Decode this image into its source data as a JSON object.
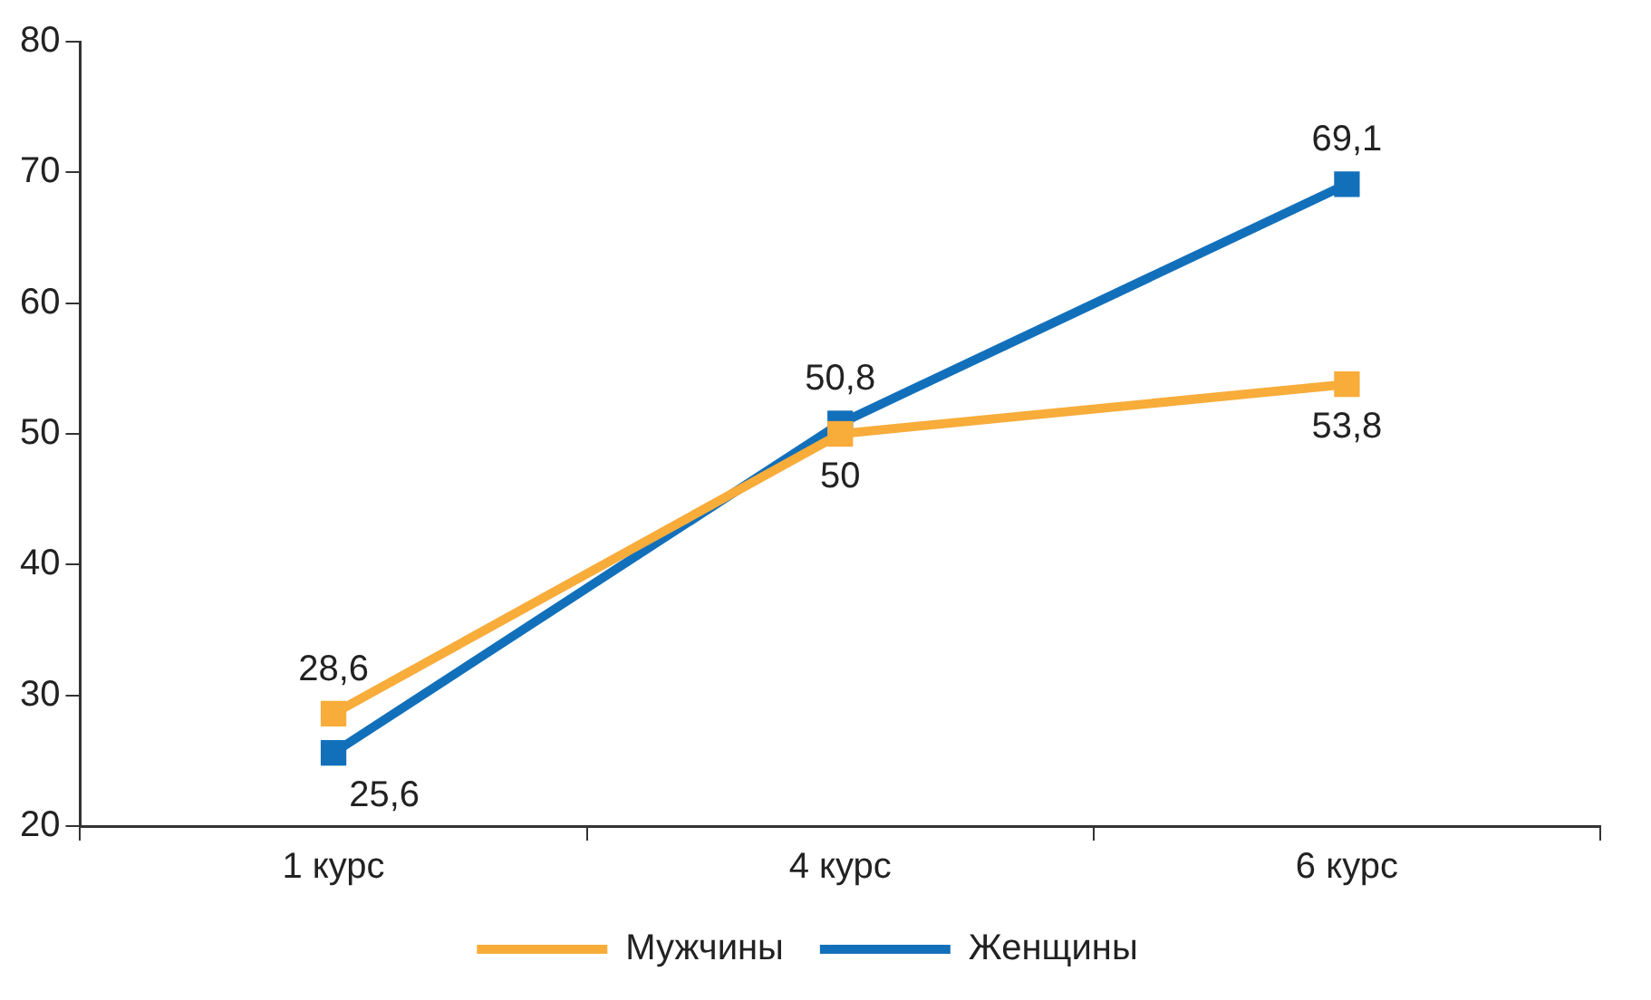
{
  "chart_data": {
    "type": "line",
    "categories": [
      "1 курс",
      "4 курс",
      "6 курс"
    ],
    "series": [
      {
        "name": "Мужчины",
        "color": "#f8ac3a",
        "values": [
          28.6,
          50,
          53.8
        ],
        "value_labels": [
          "28,6",
          "50",
          "53,8"
        ]
      },
      {
        "name": "Женщины",
        "color": "#1270bb",
        "values": [
          25.6,
          50.8,
          69.1
        ],
        "value_labels": [
          "25,6",
          "50,8",
          "69,1"
        ]
      }
    ],
    "ylim": [
      20,
      80
    ],
    "yticks": [
      20,
      30,
      40,
      50,
      60,
      70,
      80
    ],
    "grid": false,
    "legend": "bottom",
    "marker": "square",
    "line_style": "solid"
  }
}
